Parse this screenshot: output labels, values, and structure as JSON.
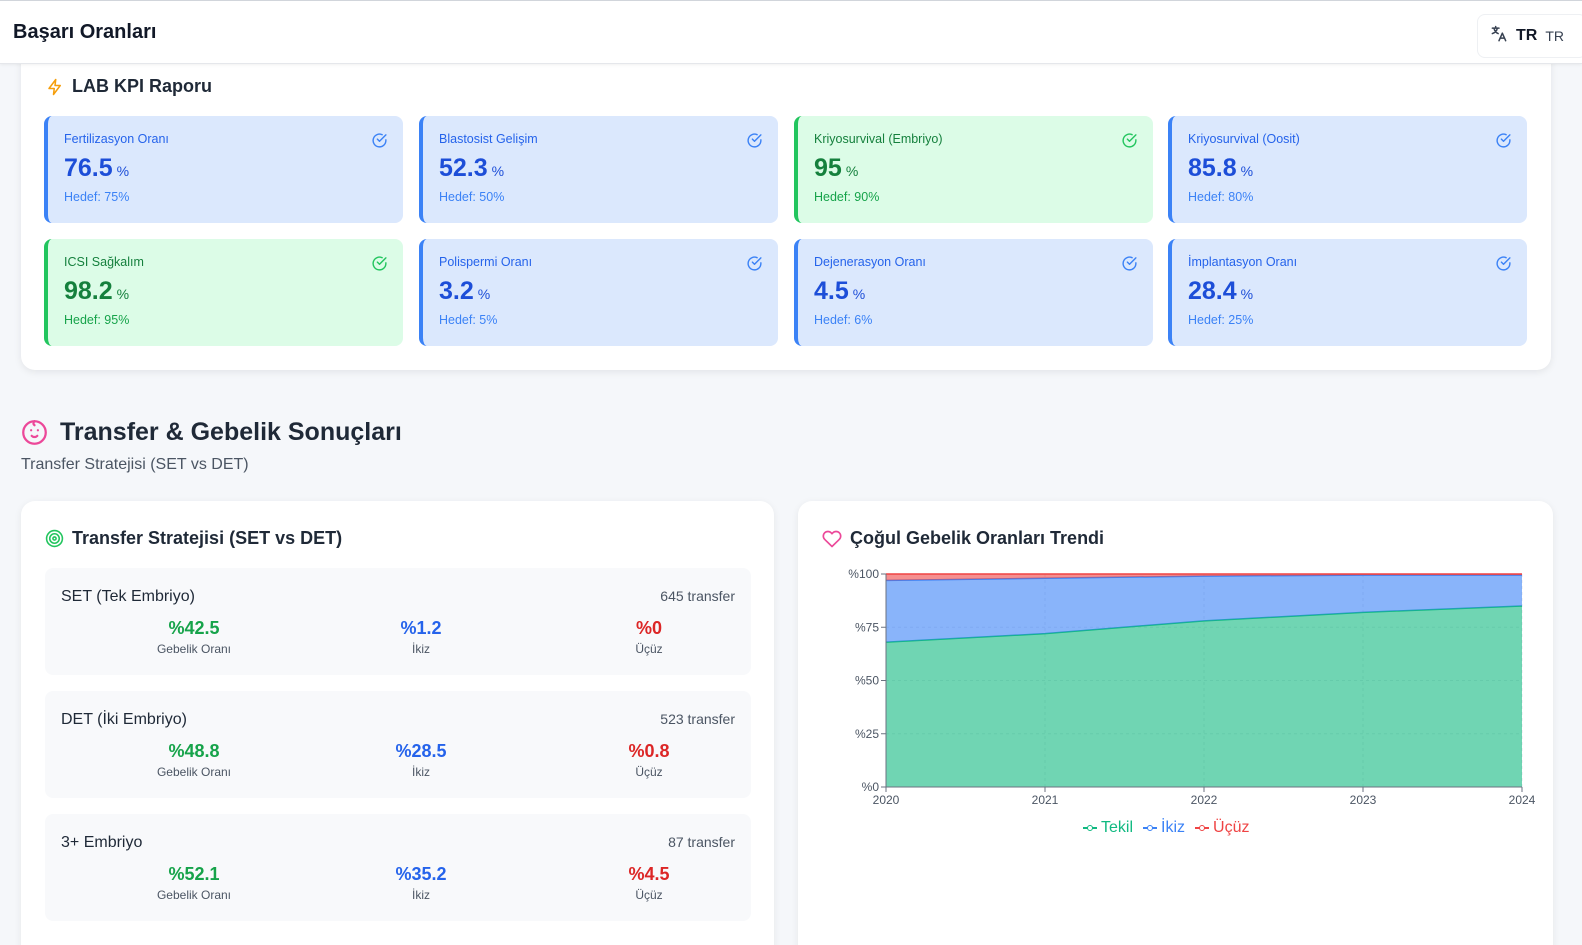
{
  "header": {
    "title": "Başarı Oranları",
    "lang_icon": "translate-icon",
    "lang_code": "TR",
    "lang_code_secondary": "TR"
  },
  "kpi": {
    "title": "LAB KPI Raporu",
    "cards": [
      {
        "label": "Fertilizasyon Oranı",
        "value": "76.5",
        "unit": "%",
        "target": "Hedef: 75%",
        "status": "info"
      },
      {
        "label": "Blastosist Gelişim",
        "value": "52.3",
        "unit": "%",
        "target": "Hedef: 50%",
        "status": "info"
      },
      {
        "label": "Kriyosurvival (Embriyo)",
        "value": "95",
        "unit": "%",
        "target": "Hedef: 90%",
        "status": "good"
      },
      {
        "label": "Kriyosurvival (Oosit)",
        "value": "85.8",
        "unit": "%",
        "target": "Hedef: 80%",
        "status": "info"
      },
      {
        "label": "ICSI Sağkalım",
        "value": "98.2",
        "unit": "%",
        "target": "Hedef: 95%",
        "status": "good"
      },
      {
        "label": "Polispermi Oranı",
        "value": "3.2",
        "unit": "%",
        "target": "Hedef: 5%",
        "status": "info"
      },
      {
        "label": "Dejenerasyon Oranı",
        "value": "4.5",
        "unit": "%",
        "target": "Hedef: 6%",
        "status": "info"
      },
      {
        "label": "İmplantasyon Oranı",
        "value": "28.4",
        "unit": "%",
        "target": "Hedef: 25%",
        "status": "info"
      }
    ]
  },
  "section": {
    "title": "Transfer & Gebelik Sonuçları",
    "subtitle": "Transfer Stratejisi (SET vs DET)"
  },
  "strategy": {
    "title": "Transfer Stratejisi (SET vs DET)",
    "rows": [
      {
        "name": "SET (Tek Embriyo)",
        "count": "645 transfer",
        "pregnancy": "%42.5",
        "pregnancy_label": "Gebelik Oranı",
        "twin": "%1.2",
        "twin_label": "İkiz",
        "triplet": "%0",
        "triplet_label": "Üçüz"
      },
      {
        "name": "DET (İki Embriyo)",
        "count": "523 transfer",
        "pregnancy": "%48.8",
        "pregnancy_label": "Gebelik Oranı",
        "twin": "%28.5",
        "twin_label": "İkiz",
        "triplet": "%0.8",
        "triplet_label": "Üçüz"
      },
      {
        "name": "3+ Embriyo",
        "count": "87 transfer",
        "pregnancy": "%52.1",
        "pregnancy_label": "Gebelik Oranı",
        "twin": "%35.2",
        "twin_label": "İkiz",
        "triplet": "%4.5",
        "triplet_label": "Üçüz"
      }
    ]
  },
  "trend": {
    "title": "Çoğul Gebelik Oranları Trendi",
    "legend": [
      "Tekil",
      "İkiz",
      "Üçüz"
    ]
  },
  "colors": {
    "tekil": "#10b981",
    "ikiz": "#3b82f6",
    "ucuz": "#ef4444",
    "accent_yellow": "#f59e0b",
    "accent_pink": "#ec4899"
  },
  "chart_data": {
    "type": "area",
    "stacked": true,
    "x": [
      "2020",
      "2021",
      "2022",
      "2023",
      "2024"
    ],
    "series": [
      {
        "name": "Tekil",
        "values": [
          68,
          72,
          78,
          82,
          85
        ]
      },
      {
        "name": "İkiz",
        "values": [
          29,
          26,
          21,
          17.5,
          14.5
        ]
      },
      {
        "name": "Üçüz",
        "values": [
          3,
          2,
          1,
          0.5,
          0.5
        ]
      }
    ],
    "yticks": [
      "%0",
      "%25",
      "%50",
      "%75",
      "%100"
    ],
    "ylim": [
      0,
      100
    ],
    "legend_position": "bottom",
    "grid": true
  }
}
